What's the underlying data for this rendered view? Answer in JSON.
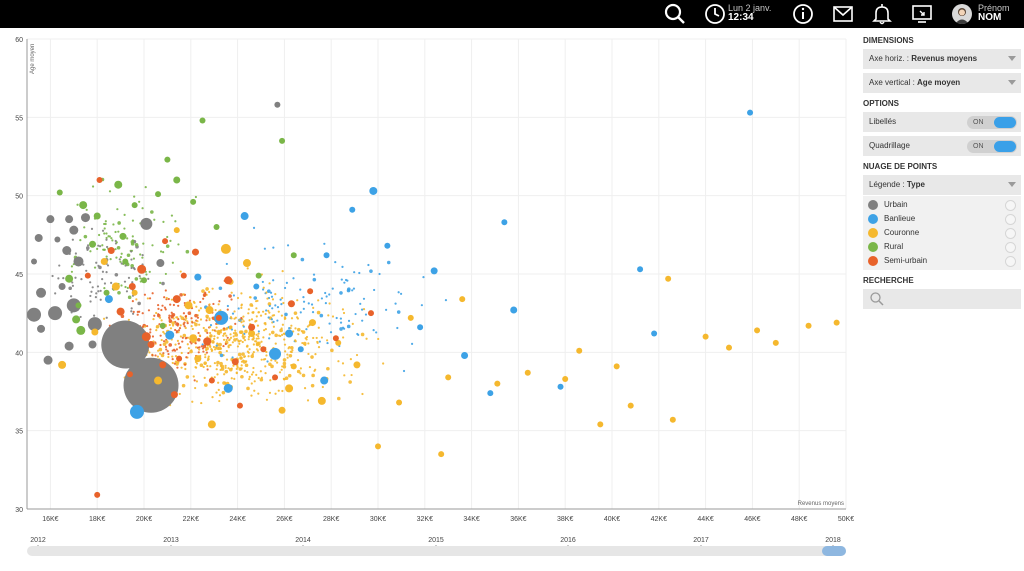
{
  "topbar": {
    "date": "Lun 2 janv.",
    "time": "12:34",
    "user_first": "Prénom",
    "user_last": "NOM",
    "icons": [
      "search-icon",
      "clock-icon",
      "info-icon",
      "mail-icon",
      "bell-icon",
      "screen-icon"
    ]
  },
  "panel": {
    "dimensions_title": "DIMENSIONS",
    "axe_horiz_label": "Axe horiz. :",
    "axe_horiz_value": "Revenus moyens",
    "axe_vert_label": "Axe vertical :",
    "axe_vert_value": "Age moyen",
    "options_title": "OPTIONS",
    "libelles_label": "Libellés",
    "libelles_state": "ON",
    "quadrillage_label": "Quadrillage",
    "quadrillage_state": "ON",
    "nuage_title": "NUAGE DE POINTS",
    "legende_label": "Légende :",
    "legende_value": "Type",
    "recherche_title": "RECHERCHE",
    "legend_items": [
      {
        "name": "Urbain",
        "color": "#808080"
      },
      {
        "name": "Banlieue",
        "color": "#3da2e6"
      },
      {
        "name": "Couronne",
        "color": "#f5b82e"
      },
      {
        "name": "Rural",
        "color": "#7ab648"
      },
      {
        "name": "Semi-urbain",
        "color": "#e8622a"
      }
    ]
  },
  "chart_data": {
    "type": "scatter",
    "xlabel": "Revenus moyens",
    "ylabel": "Age moyen",
    "xlim": [
      15000,
      50000
    ],
    "ylim": [
      30,
      60
    ],
    "x_ticks": [
      "16K€",
      "18K€",
      "20K€",
      "22K€",
      "24K€",
      "26K€",
      "28K€",
      "30K€",
      "32K€",
      "34K€",
      "36K€",
      "38K€",
      "40K€",
      "42K€",
      "44K€",
      "46K€",
      "48K€",
      "50K€"
    ],
    "y_ticks": [
      "30",
      "35",
      "40",
      "45",
      "50",
      "55",
      "60"
    ],
    "grid": true,
    "timeline": {
      "labels": [
        "2012",
        "2013",
        "2014",
        "2015",
        "2016",
        "2017",
        "2018"
      ],
      "selected": "2018"
    },
    "series": [
      {
        "name": "Urbain",
        "color": "#808080",
        "points": [
          [
            19.2,
            40.5,
            48
          ],
          [
            20.3,
            37.9,
            55
          ],
          [
            20.1,
            48.2,
            12
          ],
          [
            17.0,
            43.0,
            14
          ],
          [
            17.9,
            41.8,
            14
          ],
          [
            16.2,
            42.5,
            14
          ],
          [
            17.2,
            45.8,
            10
          ],
          [
            15.3,
            42.4,
            14
          ],
          [
            15.6,
            43.8,
            10
          ],
          [
            17.0,
            47.8,
            9
          ],
          [
            16.7,
            46.5,
            9
          ],
          [
            16.0,
            48.5,
            8
          ],
          [
            15.5,
            47.3,
            8
          ],
          [
            15.9,
            39.5,
            9
          ],
          [
            16.8,
            40.4,
            9
          ],
          [
            15.6,
            41.5,
            8
          ],
          [
            17.5,
            48.6,
            9
          ],
          [
            20.7,
            45.7,
            8
          ],
          [
            25.7,
            55.8,
            6
          ],
          [
            15.3,
            45.8,
            6
          ],
          [
            16.8,
            48.5,
            8
          ],
          [
            16.3,
            47.2,
            6
          ],
          [
            17.8,
            40.5,
            8
          ],
          [
            16.5,
            44.2,
            7
          ]
        ]
      },
      {
        "name": "Banlieue",
        "color": "#3da2e6",
        "points": [
          [
            19.7,
            36.2,
            14
          ],
          [
            23.3,
            42.2,
            14
          ],
          [
            25.6,
            39.9,
            12
          ],
          [
            21.1,
            41.1,
            9
          ],
          [
            18.5,
            43.4,
            8
          ],
          [
            23.6,
            37.7,
            9
          ],
          [
            26.2,
            41.2,
            8
          ],
          [
            24.3,
            48.7,
            8
          ],
          [
            29.8,
            50.3,
            8
          ],
          [
            27.7,
            38.2,
            8
          ],
          [
            32.4,
            45.2,
            7
          ],
          [
            33.7,
            39.8,
            7
          ],
          [
            35.8,
            42.7,
            7
          ],
          [
            37.8,
            37.8,
            6
          ],
          [
            41.8,
            41.2,
            6
          ],
          [
            41.2,
            45.3,
            6
          ],
          [
            45.9,
            55.3,
            6
          ],
          [
            35.4,
            48.3,
            6
          ],
          [
            27.8,
            46.2,
            6
          ],
          [
            31.8,
            41.6,
            6
          ],
          [
            34.8,
            37.4,
            6
          ],
          [
            22.3,
            44.8,
            7
          ],
          [
            28.9,
            49.1,
            6
          ],
          [
            30.4,
            46.8,
            6
          ],
          [
            24.8,
            44.2,
            6
          ],
          [
            26.7,
            40.2,
            6
          ]
        ]
      },
      {
        "name": "Couronne",
        "color": "#f5b82e",
        "points": [
          [
            23.5,
            46.6,
            10
          ],
          [
            21.9,
            43.0,
            8
          ],
          [
            22.1,
            40.9,
            8
          ],
          [
            22.8,
            42.7,
            8
          ],
          [
            18.8,
            44.2,
            8
          ],
          [
            20.6,
            38.2,
            8
          ],
          [
            24.4,
            45.7,
            8
          ],
          [
            27.6,
            36.9,
            8
          ],
          [
            26.2,
            37.7,
            8
          ],
          [
            22.9,
            35.4,
            8
          ],
          [
            24.6,
            41.2,
            7
          ],
          [
            22.3,
            39.6,
            7
          ],
          [
            25.9,
            36.3,
            7
          ],
          [
            27.2,
            41.9,
            7
          ],
          [
            29.1,
            39.2,
            7
          ],
          [
            30.0,
            34.0,
            6
          ],
          [
            31.4,
            42.2,
            6
          ],
          [
            33.0,
            38.4,
            6
          ],
          [
            35.1,
            38.0,
            6
          ],
          [
            38.0,
            38.3,
            6
          ],
          [
            39.5,
            35.4,
            6
          ],
          [
            40.8,
            36.6,
            6
          ],
          [
            44.0,
            41.0,
            6
          ],
          [
            45.0,
            40.3,
            6
          ],
          [
            49.6,
            41.9,
            6
          ],
          [
            16.5,
            39.2,
            8
          ],
          [
            17.9,
            41.3,
            7
          ],
          [
            18.3,
            45.8,
            7
          ],
          [
            19.6,
            43.8,
            6
          ],
          [
            21.4,
            47.8,
            6
          ],
          [
            23.7,
            44.5,
            6
          ],
          [
            26.4,
            39.1,
            6
          ],
          [
            28.3,
            40.6,
            6
          ],
          [
            30.9,
            36.8,
            6
          ],
          [
            32.7,
            33.5,
            6
          ],
          [
            36.4,
            38.7,
            6
          ],
          [
            38.6,
            40.1,
            6
          ],
          [
            40.2,
            39.1,
            6
          ],
          [
            42.4,
            44.7,
            6
          ],
          [
            42.6,
            35.7,
            6
          ],
          [
            46.2,
            41.4,
            6
          ],
          [
            47.0,
            40.6,
            6
          ],
          [
            48.4,
            41.7,
            6
          ],
          [
            33.6,
            43.4,
            6
          ]
        ]
      },
      {
        "name": "Rural",
        "color": "#7ab648",
        "points": [
          [
            17.3,
            41.4,
            9
          ],
          [
            17.1,
            42.1,
            8
          ],
          [
            16.8,
            44.7,
            8
          ],
          [
            17.4,
            49.4,
            8
          ],
          [
            18.9,
            50.7,
            8
          ],
          [
            18.0,
            48.7,
            7
          ],
          [
            21.4,
            51.0,
            7
          ],
          [
            22.5,
            54.8,
            6
          ],
          [
            25.9,
            53.5,
            6
          ],
          [
            17.8,
            46.9,
            7
          ],
          [
            19.1,
            47.4,
            7
          ],
          [
            20.0,
            44.6,
            6
          ],
          [
            24.9,
            44.9,
            6
          ],
          [
            17.2,
            43.0,
            6
          ],
          [
            19.6,
            49.4,
            6
          ],
          [
            20.6,
            50.1,
            6
          ],
          [
            16.4,
            50.2,
            6
          ],
          [
            21.0,
            52.3,
            6
          ],
          [
            23.1,
            48.0,
            6
          ],
          [
            20.8,
            41.7,
            6
          ],
          [
            18.4,
            43.8,
            6
          ],
          [
            26.4,
            46.2,
            6
          ],
          [
            22.1,
            49.6,
            6
          ],
          [
            19.2,
            45.8,
            6
          ]
        ]
      },
      {
        "name": "Semi-urbain",
        "color": "#e8622a",
        "points": [
          [
            20.1,
            41.0,
            9
          ],
          [
            19.9,
            45.3,
            9
          ],
          [
            21.4,
            43.4,
            8
          ],
          [
            19.0,
            42.6,
            8
          ],
          [
            22.7,
            40.7,
            8
          ],
          [
            23.6,
            44.6,
            8
          ],
          [
            18.0,
            30.9,
            6
          ],
          [
            20.3,
            40.5,
            7
          ],
          [
            21.3,
            37.3,
            7
          ],
          [
            22.2,
            46.4,
            7
          ],
          [
            24.6,
            41.6,
            7
          ],
          [
            23.9,
            39.4,
            7
          ],
          [
            20.8,
            39.2,
            7
          ],
          [
            19.5,
            44.2,
            7
          ],
          [
            18.6,
            46.5,
            7
          ],
          [
            26.3,
            43.1,
            7
          ],
          [
            21.5,
            39.6,
            6
          ],
          [
            22.9,
            38.2,
            6
          ],
          [
            18.1,
            51.0,
            6
          ],
          [
            25.1,
            40.2,
            6
          ],
          [
            27.1,
            43.9,
            6
          ],
          [
            29.7,
            42.5,
            6
          ],
          [
            19.4,
            38.6,
            6
          ],
          [
            21.7,
            44.9,
            6
          ],
          [
            23.2,
            42.2,
            6
          ],
          [
            20.9,
            47.1,
            6
          ],
          [
            24.1,
            36.6,
            6
          ],
          [
            25.6,
            38.4,
            6
          ],
          [
            28.2,
            40.9,
            6
          ],
          [
            17.6,
            44.9,
            6
          ]
        ]
      }
    ]
  }
}
